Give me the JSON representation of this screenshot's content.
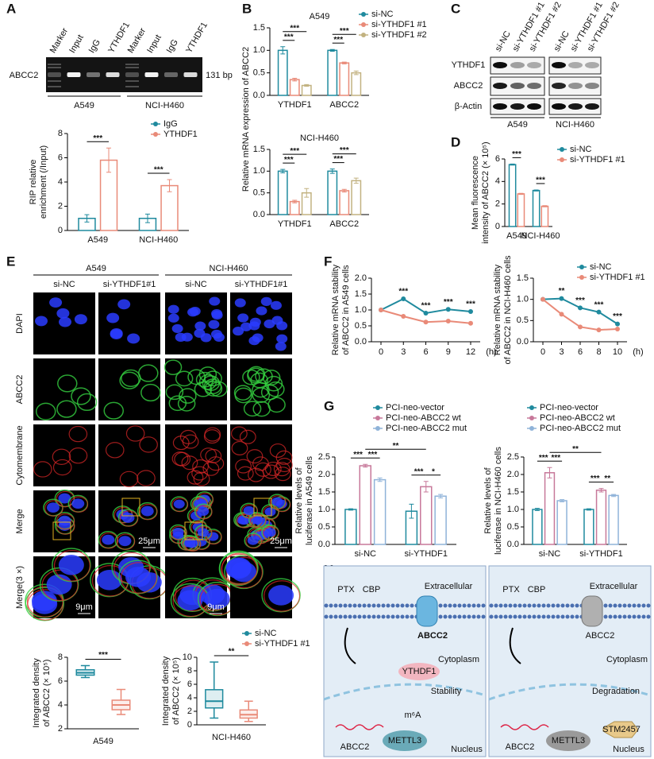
{
  "panel_labels": [
    "A",
    "B",
    "C",
    "D",
    "E",
    "F",
    "G",
    "H"
  ],
  "gel": {
    "lanes": [
      "Marker",
      "Input",
      "IgG",
      "YTHDF1",
      "Marker",
      "Input",
      "IgG",
      "YTHDF1"
    ],
    "band": "ABCC2",
    "size": "131 bp",
    "groups": [
      "A549",
      "NCI-H460"
    ]
  },
  "blot": {
    "lanes": [
      "si-NC",
      "si-YTHDF1 #1",
      "si-YTHDF1 #2",
      "si-NC",
      "si-YTHDF1 #1",
      "si-YTHDF1 #2"
    ],
    "proteins": [
      "YTHDF1",
      "ABCC2",
      "β-Actin"
    ],
    "groups": [
      "A549",
      "NCI-H460"
    ]
  },
  "microscopy": {
    "groups": [
      "A549",
      "NCI-H460"
    ],
    "columns": [
      "si-NC",
      "si-YTHDF1#1",
      "si-NC",
      "si-YTHDF1#1"
    ],
    "rows": [
      "DAPI",
      "ABCC2",
      "Cytomembrane",
      "Merge",
      "Merge(3 ×)"
    ],
    "scale_bars": [
      "25μm",
      "25μm",
      "9μm",
      "9μm"
    ]
  },
  "diagram": {
    "left": [
      "PTX",
      "CBP",
      "Extracellular",
      "ABCC2",
      "YTHDF1",
      "Cytoplasm",
      "Stability",
      "m⁶A",
      "ABCC2",
      "METTL3",
      "Nucleus"
    ],
    "right": [
      "PTX",
      "CBP",
      "Extracellular",
      "ABCC2",
      "Cytoplasm",
      "Degradation",
      "ABCC2",
      "METTL3",
      "STM2457",
      "Nucleus"
    ]
  },
  "chart_data": [
    {
      "type": "bar",
      "categories": [
        "A549",
        "NCI-H460"
      ],
      "series": [
        {
          "name": "IgG",
          "color": "#1f8a9e",
          "values": [
            1.0,
            1.0
          ],
          "errors": [
            0.3,
            0.35
          ]
        },
        {
          "name": "YTHDF1",
          "color": "#e98a78",
          "values": [
            5.8,
            3.7
          ],
          "errors": [
            1.0,
            0.5
          ]
        }
      ],
      "ylim": [
        0,
        8
      ],
      "yticks": [
        0,
        2,
        4,
        6,
        8
      ],
      "ylabel": [
        "RIP relative",
        "enrichment (/Input)"
      ],
      "comparisons": [
        {
          "text": "***",
          "a": [
            0,
            0
          ],
          "b": [
            0,
            1
          ]
        },
        {
          "text": "***",
          "a": [
            1,
            0
          ],
          "b": [
            1,
            1
          ]
        }
      ]
    },
    {
      "type": "bar",
      "title": "A549",
      "categories": [
        "YTHDF1",
        "ABCC2"
      ],
      "series": [
        {
          "name": "si-NC",
          "color": "#1f8a9e",
          "values": [
            1.0,
            1.0
          ],
          "errors": [
            0.08,
            0.02
          ]
        },
        {
          "name": "si-YTHDF1 #1",
          "color": "#e98a78",
          "values": [
            0.35,
            0.72
          ],
          "errors": [
            0.03,
            0.02
          ]
        },
        {
          "name": "si-YTHDF1 #2",
          "color": "#c2b280",
          "values": [
            0.22,
            0.5
          ],
          "errors": [
            0.02,
            0.04
          ]
        }
      ],
      "ylim": [
        0,
        1.5
      ],
      "yticks": [
        {
          "value": 0,
          "label": "0.0"
        },
        {
          "value": 0.5,
          "label": "0.5"
        },
        {
          "value": 1,
          "label": "1.0"
        },
        {
          "value": 1.5,
          "label": "1.5"
        }
      ],
      "ylabel": [
        "Relative mRNA expression of ABCC2"
      ],
      "comparisons": [
        {
          "text": "***",
          "a": [
            0,
            0
          ],
          "b": [
            0,
            1
          ]
        },
        {
          "text": "***",
          "a": [
            0,
            0
          ],
          "b": [
            0,
            2
          ]
        },
        {
          "text": "***",
          "a": [
            1,
            0
          ],
          "b": [
            1,
            1
          ]
        },
        {
          "text": "***",
          "a": [
            1,
            0
          ],
          "b": [
            1,
            2
          ]
        }
      ]
    },
    {
      "type": "bar",
      "title": "NCI-H460",
      "categories": [
        "YTHDF1",
        "ABCC2"
      ],
      "series": [
        {
          "color": "#1f8a9e",
          "values": [
            1.0,
            1.0
          ],
          "errors": [
            0.04,
            0.05
          ]
        },
        {
          "color": "#e98a78",
          "values": [
            0.3,
            0.55
          ],
          "errors": [
            0.03,
            0.03
          ]
        },
        {
          "color": "#c2b280",
          "values": [
            0.5,
            0.78
          ],
          "errors": [
            0.1,
            0.06
          ]
        }
      ],
      "ylim": [
        0,
        1.5
      ],
      "yticks": [
        {
          "value": 0,
          "label": "0.0"
        },
        {
          "value": 0.5,
          "label": "0.5"
        },
        {
          "value": 1,
          "label": "1.0"
        },
        {
          "value": 1.5,
          "label": "1.5"
        }
      ],
      "comparisons": [
        {
          "text": "***",
          "a": [
            0,
            0
          ],
          "b": [
            0,
            1
          ]
        },
        {
          "text": "***",
          "a": [
            0,
            0
          ],
          "b": [
            0,
            2
          ]
        },
        {
          "text": "***",
          "a": [
            1,
            0
          ],
          "b": [
            1,
            1
          ]
        },
        {
          "text": "***",
          "a": [
            1,
            0
          ],
          "b": [
            1,
            2
          ]
        }
      ]
    },
    {
      "type": "bar",
      "categories": [
        "A549",
        "NCI-H460"
      ],
      "series": [
        {
          "name": "si-NC",
          "color": "#1f8a9e",
          "values": [
            5.5,
            3.2
          ],
          "errors": [
            0.05,
            0.05
          ]
        },
        {
          "name": "si-YTHDF1 #1",
          "color": "#e98a78",
          "values": [
            2.9,
            1.8
          ],
          "errors": [
            0.05,
            0.05
          ]
        }
      ],
      "ylim": [
        0,
        6
      ],
      "yticks": [
        0,
        2,
        4,
        6
      ],
      "ylabel": [
        "Mean fluorescence",
        "intensity of ABCC2 (× 10⁵)"
      ],
      "comparisons": [
        {
          "text": "***",
          "a": [
            0,
            0
          ],
          "b": [
            0,
            1
          ]
        },
        {
          "text": "***",
          "a": [
            1,
            0
          ],
          "b": [
            1,
            1
          ]
        }
      ]
    },
    {
      "type": "box",
      "xlabel": "A549",
      "series": [
        {
          "color": "#1f8a9e",
          "min": 6.3,
          "q1": 6.5,
          "median": 6.7,
          "q3": 6.95,
          "max": 7.3
        },
        {
          "color": "#e98a78",
          "min": 3.2,
          "q1": 3.6,
          "median": 4.0,
          "q3": 4.4,
          "max": 5.3
        }
      ],
      "ylim": [
        2,
        8
      ],
      "yticks": [
        2,
        4,
        6,
        8
      ],
      "ylabel": [
        "Integrated density",
        "of ABCC2 (× 10⁵)"
      ],
      "significance": "***"
    },
    {
      "type": "box",
      "xlabel": "NCI-H460",
      "series": [
        {
          "name": "si-NC",
          "color": "#1f8a9e",
          "min": 1.0,
          "q1": 2.5,
          "median": 3.5,
          "q3": 5.2,
          "max": 9.3
        },
        {
          "name": "si-YTHDF1 #1",
          "color": "#e98a78",
          "min": 0.5,
          "q1": 1.0,
          "median": 1.5,
          "q3": 2.2,
          "max": 3.5
        }
      ],
      "ylim": [
        0,
        10
      ],
      "yticks": [
        0,
        2,
        4,
        6,
        8,
        10
      ],
      "ylabel": [
        "Integrated density",
        "of ABCC2 (× 10⁵)"
      ],
      "significance": "**"
    },
    {
      "type": "line",
      "categories": [
        "0",
        "3",
        "6",
        "9",
        "12"
      ],
      "xlabel": "(h)",
      "series": [
        {
          "color": "#1f8a9e",
          "values": [
            1.0,
            1.35,
            0.9,
            1.02,
            0.95
          ]
        },
        {
          "color": "#e98a78",
          "values": [
            1.0,
            0.8,
            0.62,
            0.65,
            0.58
          ]
        }
      ],
      "ylim": [
        0,
        2
      ],
      "yticks": [
        {
          "value": 0,
          "label": "0.0"
        },
        {
          "value": 0.5,
          "label": "0.5"
        },
        {
          "value": 1,
          "label": "1.0"
        },
        {
          "value": 1.5,
          "label": "1.5"
        },
        {
          "value": 2,
          "label": "2.0"
        }
      ],
      "ylabel": [
        "Relative mRNA stability",
        "of ABCC2 in A549 cells"
      ],
      "significance": [
        null,
        "***",
        "***",
        "***",
        "***"
      ]
    },
    {
      "type": "line",
      "categories": [
        "0",
        "3",
        "6",
        "8",
        "10"
      ],
      "xlabel": "(h)",
      "series": [
        {
          "name": "si-NC",
          "color": "#1f8a9e",
          "values": [
            1.0,
            1.02,
            0.8,
            0.7,
            0.42
          ]
        },
        {
          "name": "si-YTHDF1 #1",
          "color": "#e98a78",
          "values": [
            1.0,
            0.65,
            0.35,
            0.28,
            0.3
          ]
        }
      ],
      "ylim": [
        0,
        1.5
      ],
      "yticks": [
        {
          "value": 0,
          "label": "0.0"
        },
        {
          "value": 0.5,
          "label": "0.5"
        },
        {
          "value": 1,
          "label": "1.0"
        },
        {
          "value": 1.5,
          "label": "1.5"
        }
      ],
      "ylabel": [
        "Relative mRNA stability",
        "of ABCC2 in NCI-H460 cells"
      ],
      "significance": [
        null,
        "**",
        "***",
        "***",
        "***"
      ]
    },
    {
      "type": "bar",
      "categories": [
        "si-NC",
        "si-YTHDF1"
      ],
      "series": [
        {
          "name": "PCI-neo-vector",
          "color": "#1f8a9e",
          "values": [
            1.0,
            0.95
          ],
          "errors": [
            0.02,
            0.2
          ]
        },
        {
          "name": "PCI-neo-ABCC2 wt",
          "color": "#c7789a",
          "values": [
            2.25,
            1.65
          ],
          "errors": [
            0.04,
            0.15
          ]
        },
        {
          "name": "PCI-neo-ABCC2 mut",
          "color": "#8fb3d9",
          "values": [
            1.85,
            1.38
          ],
          "errors": [
            0.05,
            0.05
          ]
        }
      ],
      "ylim": [
        0,
        2.5
      ],
      "yticks": [
        {
          "value": 0,
          "label": "0.0"
        },
        {
          "value": 0.5,
          "label": "0.5"
        },
        {
          "value": 1,
          "label": "1.0"
        },
        {
          "value": 1.5,
          "label": "1.5"
        },
        {
          "value": 2,
          "label": "2.0"
        },
        {
          "value": 2.5,
          "label": "2.5"
        }
      ],
      "ylabel": [
        "Relative levels of",
        "luciferase in A549 cells"
      ],
      "comparisons": [
        {
          "text": "***",
          "a": [
            0,
            0
          ],
          "b": [
            0,
            1
          ]
        },
        {
          "text": "***",
          "a": [
            0,
            1
          ],
          "b": [
            0,
            2
          ]
        },
        {
          "text": "***",
          "a": [
            1,
            0
          ],
          "b": [
            1,
            1
          ]
        },
        {
          "text": "*",
          "a": [
            1,
            1
          ],
          "b": [
            1,
            2
          ]
        },
        {
          "text": "**",
          "a": [
            0,
            1
          ],
          "b": [
            1,
            1
          ]
        }
      ]
    },
    {
      "type": "bar",
      "categories": [
        "si-NC",
        "si-YTHDF1"
      ],
      "series": [
        {
          "name": "PCI-neo-vector",
          "color": "#1f8a9e",
          "values": [
            1.0,
            1.0
          ],
          "errors": [
            0.03,
            0.02
          ]
        },
        {
          "name": "PCI-neo-ABCC2 wt",
          "color": "#c7789a",
          "values": [
            2.05,
            1.55
          ],
          "errors": [
            0.15,
            0.05
          ]
        },
        {
          "name": "PCI-neo-ABCC2 mut",
          "color": "#8fb3d9",
          "values": [
            1.25,
            1.4
          ],
          "errors": [
            0.03,
            0.03
          ]
        }
      ],
      "ylim": [
        0,
        2.5
      ],
      "yticks": [
        {
          "value": 0,
          "label": "0.0"
        },
        {
          "value": 0.5,
          "label": "0.5"
        },
        {
          "value": 1,
          "label": "1.0"
        },
        {
          "value": 1.5,
          "label": "1.5"
        },
        {
          "value": 2,
          "label": "2.0"
        },
        {
          "value": 2.5,
          "label": "2.5"
        }
      ],
      "ylabel": [
        "Relative levels of",
        "luciferase in NCI-H460 cells"
      ],
      "comparisons": [
        {
          "text": "***",
          "a": [
            0,
            0
          ],
          "b": [
            0,
            1
          ]
        },
        {
          "text": "***",
          "a": [
            0,
            1
          ],
          "b": [
            0,
            2
          ]
        },
        {
          "text": "***",
          "a": [
            1,
            0
          ],
          "b": [
            1,
            1
          ]
        },
        {
          "text": "**",
          "a": [
            1,
            1
          ],
          "b": [
            1,
            2
          ]
        },
        {
          "text": "**",
          "a": [
            0,
            1
          ],
          "b": [
            1,
            1
          ]
        }
      ]
    }
  ]
}
